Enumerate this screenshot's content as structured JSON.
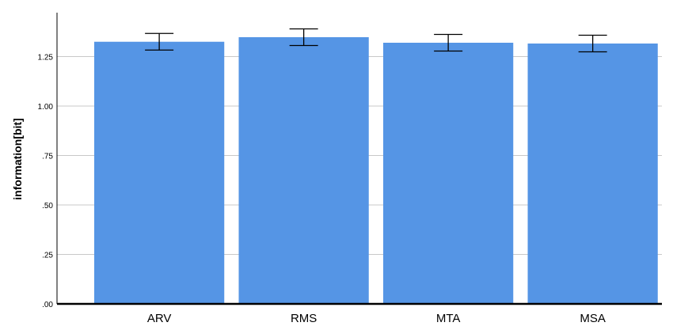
{
  "chart_data": {
    "type": "bar",
    "categories": [
      "ARV",
      "RMS",
      "MTA",
      "MSA"
    ],
    "values": [
      1.325,
      1.348,
      1.32,
      1.316
    ],
    "error_bars": [
      {
        "low": 1.283,
        "high": 1.367
      },
      {
        "low": 1.306,
        "high": 1.39
      },
      {
        "low": 1.278,
        "high": 1.362
      },
      {
        "low": 1.274,
        "high": 1.358
      }
    ],
    "ylabel": "information[bit]",
    "ylim": [
      0,
      1.45
    ],
    "yticks": [
      0,
      0.25,
      0.5,
      0.75,
      1.0,
      1.25
    ],
    "ytick_labels": [
      ".00",
      ".25",
      ".50",
      ".75",
      "1.00",
      "1.25"
    ],
    "grid": true,
    "bar_color": "#5595e5"
  }
}
